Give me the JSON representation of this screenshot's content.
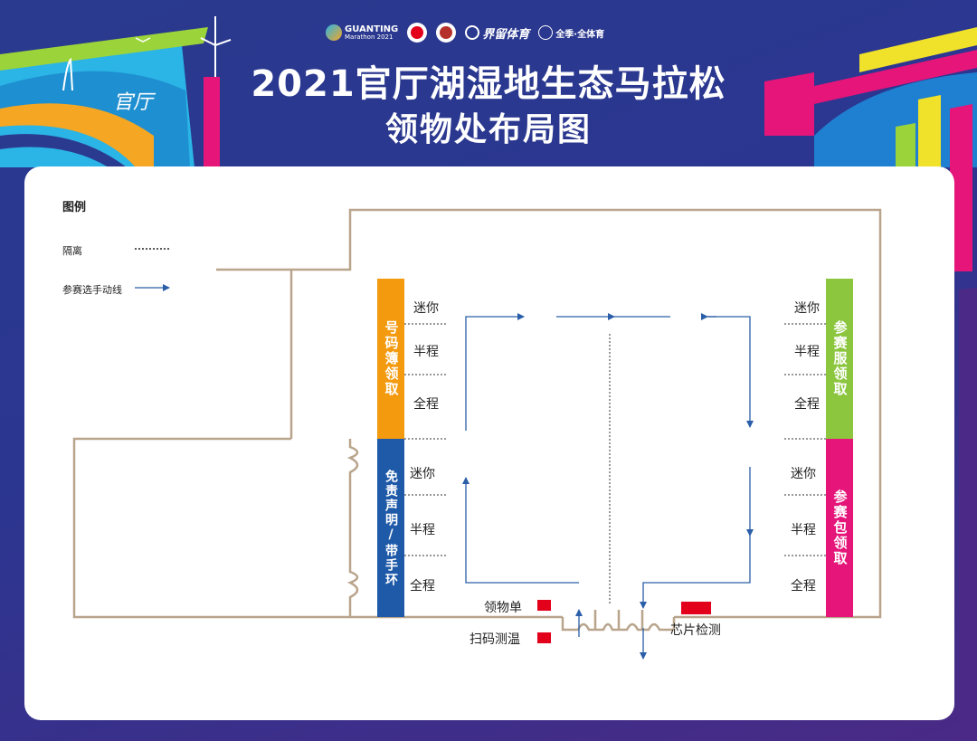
{
  "header": {
    "title_line1": "2021官厅湖湿地生态马拉松",
    "title_line2": "领物处布局图",
    "deco_text": "官厅",
    "logos": {
      "guanting_name": "GUANTING",
      "guanting_sub": "Marathon 2021",
      "sports_brand": "界留体育",
      "slogan": "全季·全体育"
    }
  },
  "legend": {
    "title": "图例",
    "isolation": "隔离",
    "flow": "参赛选手动线"
  },
  "stations": {
    "left_top": "号码簿领取",
    "left_bottom": "免责声明/带手环",
    "right_top": "参赛服领取",
    "right_bottom": "参赛包领取"
  },
  "rows": {
    "mini": "迷你",
    "half": "半程",
    "full": "全程"
  },
  "entrance": {
    "claim_form": "领物单",
    "scan_temp": "扫码测温",
    "chip_check": "芯片检测"
  },
  "colors": {
    "orange": "#f39a0f",
    "blue": "#1f5aa8",
    "green": "#8cc63f",
    "magenta": "#e5157a",
    "red": "#e3001b",
    "wall": "#b9a48c",
    "arrow": "#2a5ea8"
  }
}
